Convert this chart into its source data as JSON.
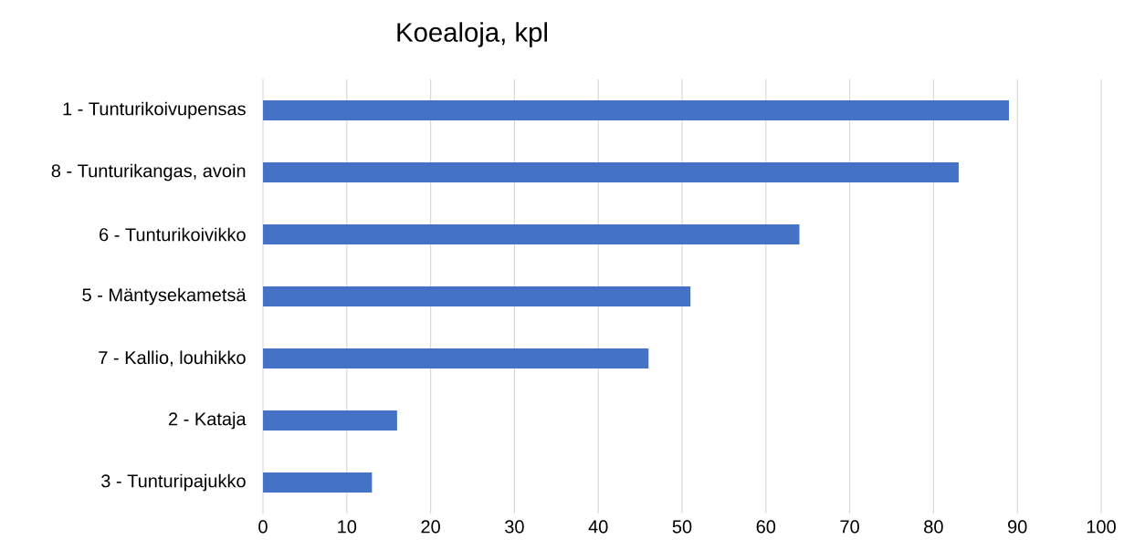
{
  "chart_data": {
    "type": "bar",
    "orientation": "horizontal",
    "title": "Koealoja, kpl",
    "categories": [
      "1 - Tunturikoivupensas",
      "8 - Tunturikangas, avoin",
      "6 - Tunturikoivikko",
      "5 - Mäntysekametsä",
      "7 - Kallio, louhikko",
      "2 - Kataja",
      "3 - Tunturipajukko"
    ],
    "values": [
      89,
      83,
      64,
      51,
      46,
      16,
      13
    ],
    "color": "#4472c4",
    "xlim": [
      0,
      100
    ],
    "xticks": [
      0,
      10,
      20,
      30,
      40,
      50,
      60,
      70,
      80,
      90,
      100
    ],
    "grid": "x"
  }
}
